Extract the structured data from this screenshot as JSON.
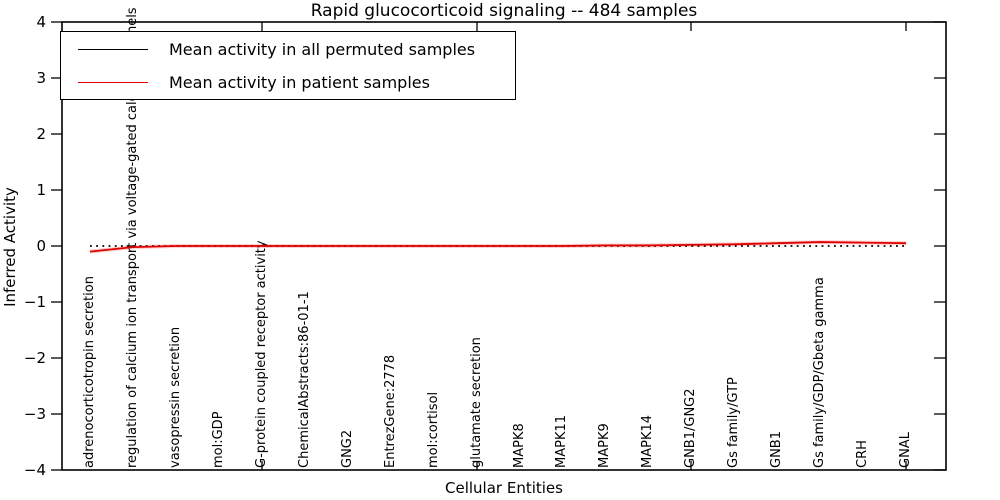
{
  "title": "Rapid glucocorticoid signaling -- 484 samples",
  "legend": {
    "items": [
      {
        "label": "Mean activity in all permuted samples",
        "color": "#000000"
      },
      {
        "label": "Mean activity in patient samples",
        "color": "#dd0000"
      }
    ]
  },
  "yaxis": {
    "label": "Inferred Activity",
    "ticks": [
      "4",
      "3",
      "2",
      "1",
      "0",
      "−1",
      "−2",
      "−3",
      "−4"
    ]
  },
  "xaxis": {
    "label": "Cellular Entities"
  },
  "chart_data": {
    "type": "line",
    "title": "Rapid glucocorticoid signaling -- 484 samples",
    "xlabel": "Cellular Entities",
    "ylabel": "Inferred Activity",
    "ylim": [
      -4,
      4
    ],
    "grid": false,
    "legend_position": "upper left",
    "categories": [
      "adrenocorticotropin secretion",
      "regulation of calcium ion transport via voltage-gated calcium channels",
      "vasopressin secretion",
      "mol:GDP",
      "G-protein coupled receptor activity",
      "ChemicalAbstracts:86-01-1",
      "GNG2",
      "EntrezGene:2778",
      "mol:cortisol",
      "glutamate secretion",
      "MAPK8",
      "MAPK11",
      "MAPK9",
      "MAPK14",
      "GNB1/GNG2",
      "Gs family/GTP",
      "GNB1",
      "Gs family/GDP/Gbeta gamma",
      "CRH",
      "GNAL"
    ],
    "series": [
      {
        "name": "Mean activity in all permuted samples",
        "color": "#000000",
        "style": "dotted",
        "values": [
          0.0,
          0.0,
          0.0,
          0.0,
          0.0,
          0.0,
          0.0,
          0.0,
          0.0,
          0.0,
          0.0,
          0.0,
          0.0,
          0.0,
          0.0,
          0.0,
          0.0,
          0.0,
          0.0,
          0.0
        ]
      },
      {
        "name": "Mean activity in patient samples",
        "color": "#dd0000",
        "style": "solid",
        "values": [
          -0.1,
          -0.02,
          0.0,
          0.0,
          0.0,
          0.0,
          0.0,
          0.0,
          0.0,
          0.0,
          0.0,
          0.0,
          0.01,
          0.01,
          0.02,
          0.03,
          0.05,
          0.07,
          0.06,
          0.05
        ]
      }
    ]
  }
}
